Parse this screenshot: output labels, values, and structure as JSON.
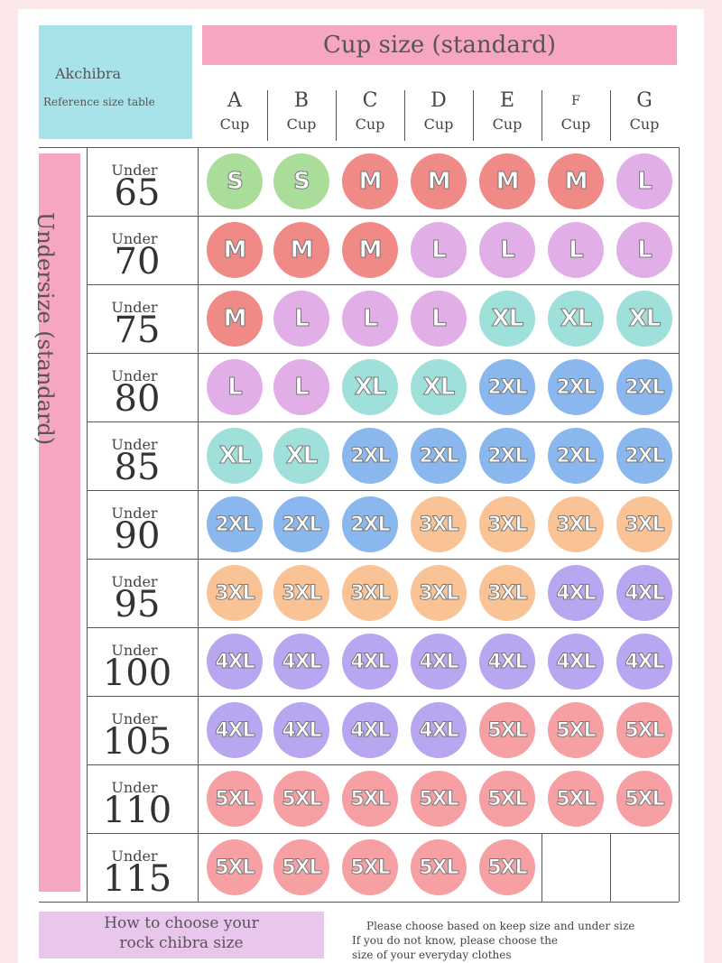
{
  "brand": {
    "name": "Akchibra",
    "subtitle": "Reference size table"
  },
  "cup_banner": "Cup size (standard)",
  "undersize_banner": "Undersize (standard)",
  "cups": [
    {
      "letter": "A",
      "word": "Cup"
    },
    {
      "letter": "B",
      "word": "Cup"
    },
    {
      "letter": "C",
      "word": "Cup"
    },
    {
      "letter": "D",
      "word": "Cup"
    },
    {
      "letter": "E",
      "word": "Cup"
    },
    {
      "letter": "F",
      "word": "Cup"
    },
    {
      "letter": "G",
      "word": "Cup"
    }
  ],
  "rows": [
    {
      "label": "Under",
      "number": "65",
      "sizes": [
        "S",
        "S",
        "M",
        "M",
        "M",
        "M",
        "L"
      ]
    },
    {
      "label": "Under",
      "number": "70",
      "sizes": [
        "M",
        "M",
        "M",
        "L",
        "L",
        "L",
        "L"
      ]
    },
    {
      "label": "Under",
      "number": "75",
      "sizes": [
        "M",
        "L",
        "L",
        "L",
        "XL",
        "XL",
        "XL"
      ]
    },
    {
      "label": "Under",
      "number": "80",
      "sizes": [
        "L",
        "L",
        "XL",
        "XL",
        "2XL",
        "2XL",
        "2XL"
      ]
    },
    {
      "label": "Under",
      "number": "85",
      "sizes": [
        "XL",
        "XL",
        "2XL",
        "2XL",
        "2XL",
        "2XL",
        "2XL"
      ]
    },
    {
      "label": "Under",
      "number": "90",
      "sizes": [
        "2XL",
        "2XL",
        "2XL",
        "3XL",
        "3XL",
        "3XL",
        "3XL"
      ]
    },
    {
      "label": "Under",
      "number": "95",
      "sizes": [
        "3XL",
        "3XL",
        "3XL",
        "3XL",
        "3XL",
        "4XL",
        "4XL"
      ]
    },
    {
      "label": "Under",
      "number": "100",
      "sizes": [
        "4XL",
        "4XL",
        "4XL",
        "4XL",
        "4XL",
        "4XL",
        "4XL"
      ]
    },
    {
      "label": "Under",
      "number": "105",
      "sizes": [
        "4XL",
        "4XL",
        "4XL",
        "4XL",
        "5XL",
        "5XL",
        "5XL"
      ]
    },
    {
      "label": "Under",
      "number": "110",
      "sizes": [
        "5XL",
        "5XL",
        "5XL",
        "5XL",
        "5XL",
        "5XL",
        "5XL"
      ]
    },
    {
      "label": "Under",
      "number": "115",
      "sizes": [
        "5XL",
        "5XL",
        "5XL",
        "5XL",
        "5XL",
        "",
        ""
      ]
    }
  ],
  "size_colors": {
    "S": "#a9dd99",
    "M": "#f08a86",
    "L": "#e2aee8",
    "XL": "#9fe0da",
    "2XL": "#8ab7ee",
    "3XL": "#f9c396",
    "4XL": "#b9a6f1",
    "5XL": "#f6a0a4"
  },
  "footer": {
    "left_line1": "How to choose your",
    "left_line2": "rock chibra size",
    "right_line1": "Please choose based on keep size and under size",
    "right_line2": "If you do not know, please choose the",
    "right_line3": "size of your everyday clothes"
  }
}
